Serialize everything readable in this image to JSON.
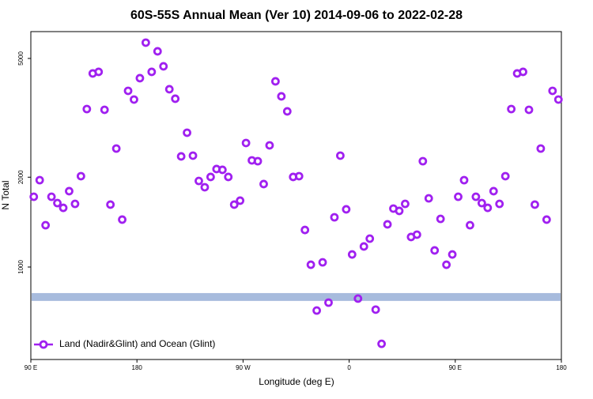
{
  "chart_data": {
    "type": "scatter",
    "title": "60S-55S Annual Mean (Ver 10)   2014-09-06 to 2022-02-28",
    "x_label": "Longitude (deg E)",
    "y_label": "N Total",
    "log_y": true,
    "xlim": [
      90,
      540
    ],
    "ylim": [
      490,
      6150
    ],
    "xticks": [
      {
        "value": 90,
        "label": "90 E"
      },
      {
        "value": 180,
        "label": "180"
      },
      {
        "value": 270,
        "label": "90 W"
      },
      {
        "value": 360,
        "label": "0"
      },
      {
        "value": 450,
        "label": "90 E"
      },
      {
        "value": 540,
        "label": "180"
      }
    ],
    "yticks": [
      1000,
      2000,
      5000
    ],
    "band": {
      "ylim": [
        770,
        818
      ],
      "color": "#a7bbdd"
    },
    "legend": "bottom-left",
    "series": [
      {
        "name": "Land (Nadir&Glint) and Ocean (Glint)",
        "color": "#a020f0",
        "x": [
          92.5,
          97.5,
          102.5,
          107.5,
          112.5,
          117.5,
          122.5,
          127.5,
          132.5,
          137.5,
          142.5,
          147.5,
          152.5,
          157.5,
          162.5,
          167.5,
          172.5,
          177.5,
          182.5,
          187.5,
          192.5,
          197.5,
          202.5,
          207.5,
          212.5,
          217.5,
          222.5,
          227.5,
          232.5,
          237.5,
          242.5,
          247.5,
          252.5,
          257.5,
          262.5,
          267.5,
          272.5,
          277.5,
          282.5,
          287.5,
          292.5,
          297.5,
          302.5,
          307.5,
          312.5,
          317.5,
          322.5,
          327.5,
          332.5,
          337.5,
          342.5,
          347.5,
          352.5,
          357.5,
          362.5,
          367.5,
          372.5,
          377.5,
          382.5,
          387.5,
          392.5,
          397.5,
          402.5,
          407.5,
          412.5,
          417.5,
          422.5,
          427.5,
          432.5,
          437.5,
          442.5,
          447.5,
          452.5,
          457.5,
          462.5,
          467.5,
          472.5,
          477.5,
          482.5,
          487.5,
          492.5,
          497.5,
          502.5,
          507.5,
          512.5,
          517.5,
          522.5,
          527.5,
          532.5,
          537.5
        ],
        "values": [
          1720,
          1955,
          1381,
          1720,
          1638,
          1579,
          1796,
          1628,
          2016,
          3384,
          4454,
          4508,
          3364,
          1619,
          2495,
          1442,
          3894,
          3641,
          4294,
          5648,
          4508,
          5282,
          4705,
          3943,
          3664,
          2348,
          2819,
          2362,
          1943,
          1851,
          2004,
          2130,
          2117,
          2004,
          1619,
          1669,
          2604,
          2277,
          2263,
          1897,
          2557,
          4190,
          3732,
          3324,
          2004,
          2016,
          1331,
          1018,
          715,
          1037,
          760,
          1468,
          2362,
          1561,
          1102,
          784,
          1172,
          1245,
          720,
          553,
          1390,
          1570,
          1542,
          1628,
          1261,
          1284,
          2263,
          1699,
          1137,
          1450,
          1018,
          1102,
          1720,
          1955,
          1381,
          1720,
          1638,
          1579,
          1796,
          1628,
          2016,
          3384,
          4454,
          4508,
          3364,
          1619,
          2495,
          1442,
          3894,
          3641
        ]
      }
    ]
  }
}
